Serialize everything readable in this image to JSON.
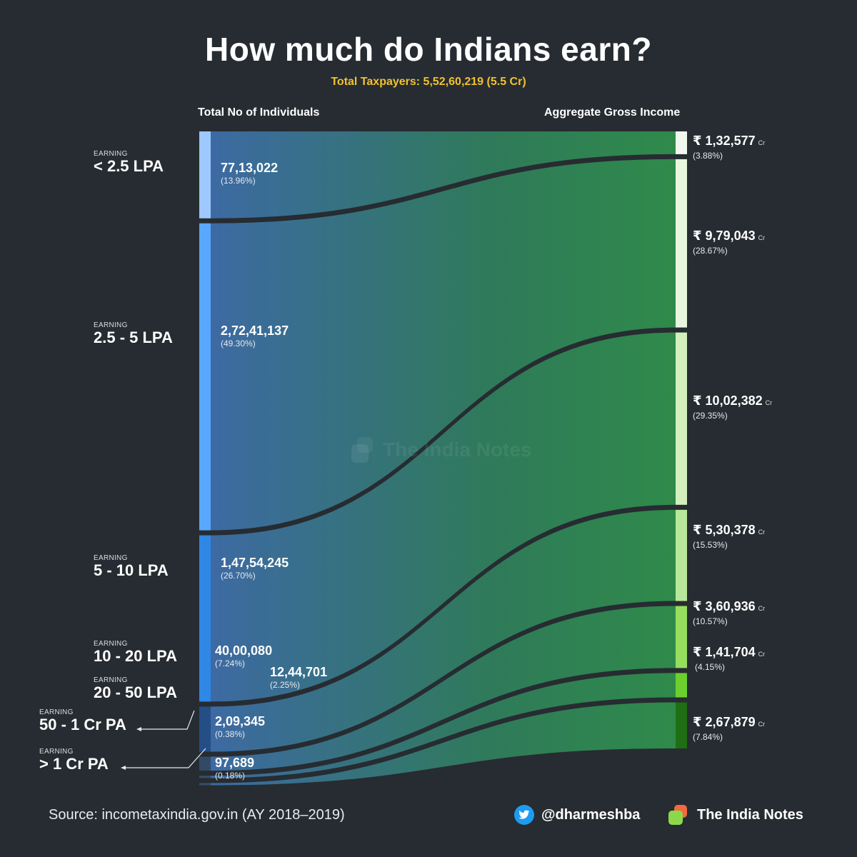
{
  "title": "How much do Indians earn?",
  "subtitle": "Total Taxpayers: 5,52,60,219 (5.5 Cr)",
  "left_header": "Total No of Individuals",
  "right_header": "Aggregate Gross Income",
  "earning_label": "EARNING",
  "currency_symbol": "₹",
  "currency_unit": "Cr",
  "watermark": "The India Notes",
  "source": "Source: incometaxindia.gov.in (AY 2018–2019)",
  "twitter_handle": "@dharmeshba",
  "brand": "The India Notes",
  "colors": {
    "background": "#262c31",
    "accent": "#f2c12e",
    "flow_start": "#3d6aa3",
    "flow_end": "#2f8a4a"
  },
  "chart_data": {
    "type": "sankey",
    "source_label": "Total No of Individuals",
    "target_label": "Aggregate Gross Income",
    "total_taxpayers": 55260219,
    "bands": [
      {
        "band": "< 2.5 LPA",
        "individuals": "77,13,022",
        "individuals_pct": "(13.96%)",
        "individuals_value": 7713022,
        "income": "1,32,577",
        "income_pct": "(3.88%)",
        "income_value": 132577,
        "left_color": "#9ec9ff",
        "right_color": "#f2f7ee"
      },
      {
        "band": "2.5 - 5 LPA",
        "individuals": "2,72,41,137",
        "individuals_pct": "(49.30%)",
        "individuals_value": 27241137,
        "income": "9,79,043",
        "income_pct": "(28.67%)",
        "income_value": 979043,
        "left_color": "#5aa7ff",
        "right_color": "#e9f6de"
      },
      {
        "band": "5 - 10 LPA",
        "individuals": "1,47,54,245",
        "individuals_pct": "(26.70%)",
        "individuals_value": 14754245,
        "income": "10,02,382",
        "income_pct": "(29.35%)",
        "income_value": 1002382,
        "left_color": "#2f87e6",
        "right_color": "#d3efbd"
      },
      {
        "band": "10 - 20 LPA",
        "individuals": "40,00,080",
        "individuals_pct": "(7.24%)",
        "individuals_value": 4000080,
        "income": "5,30,378",
        "income_pct": "(15.53%)",
        "income_value": 530378,
        "left_color": "#244f86",
        "right_color": "#b9e79a"
      },
      {
        "band": "20 - 50 LPA",
        "individuals": "12,44,701",
        "individuals_pct": "(2.25%)",
        "individuals_value": 1244701,
        "income": "3,60,936",
        "income_pct": "(10.57%)",
        "income_value": 360936,
        "left_color": "#334a66",
        "right_color": "#97dd5e"
      },
      {
        "band": "50 - 1 Cr PA",
        "individuals": "2,09,345",
        "individuals_pct": "(0.38%)",
        "individuals_value": 209345,
        "income": "1,41,704",
        "income_pct": "(4.15%)",
        "income_value": 141704,
        "left_color": "#3a4d63",
        "right_color": "#6ccf2e"
      },
      {
        "band": "> 1 Cr PA",
        "individuals": "97,689",
        "individuals_pct": "(0.18%)",
        "individuals_value": 97689,
        "income": "2,67,879",
        "income_pct": "(7.84%)",
        "income_value": 267879,
        "left_color": "#3a4d63",
        "right_color": "#1f6e14"
      }
    ]
  }
}
